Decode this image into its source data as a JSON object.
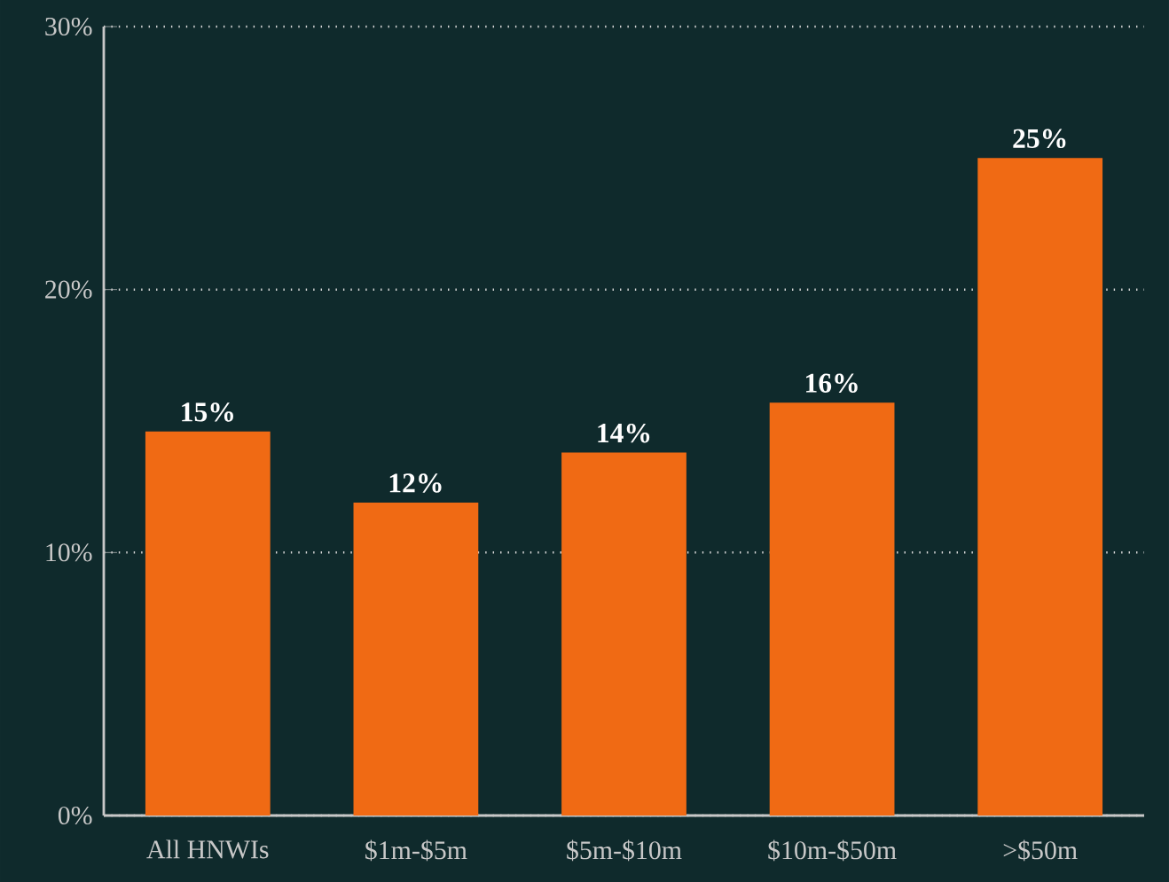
{
  "chart_data": {
    "type": "bar",
    "categories": [
      "All HNWIs",
      "$1m-$5m",
      "$5m-$10m",
      "$10m-$50m",
      ">$50m"
    ],
    "values": [
      14.6,
      11.9,
      13.8,
      15.7,
      25.0
    ],
    "value_labels": [
      "15%",
      "12%",
      "14%",
      "16%",
      "25%"
    ],
    "color": "#f06a14",
    "ylim": [
      0,
      30
    ],
    "yticks": [
      {
        "value": 0,
        "label": "0%"
      },
      {
        "value": 10,
        "label": "10%"
      },
      {
        "value": 20,
        "label": "20%"
      },
      {
        "value": 30,
        "label": "30%"
      }
    ],
    "grid": "y"
  }
}
